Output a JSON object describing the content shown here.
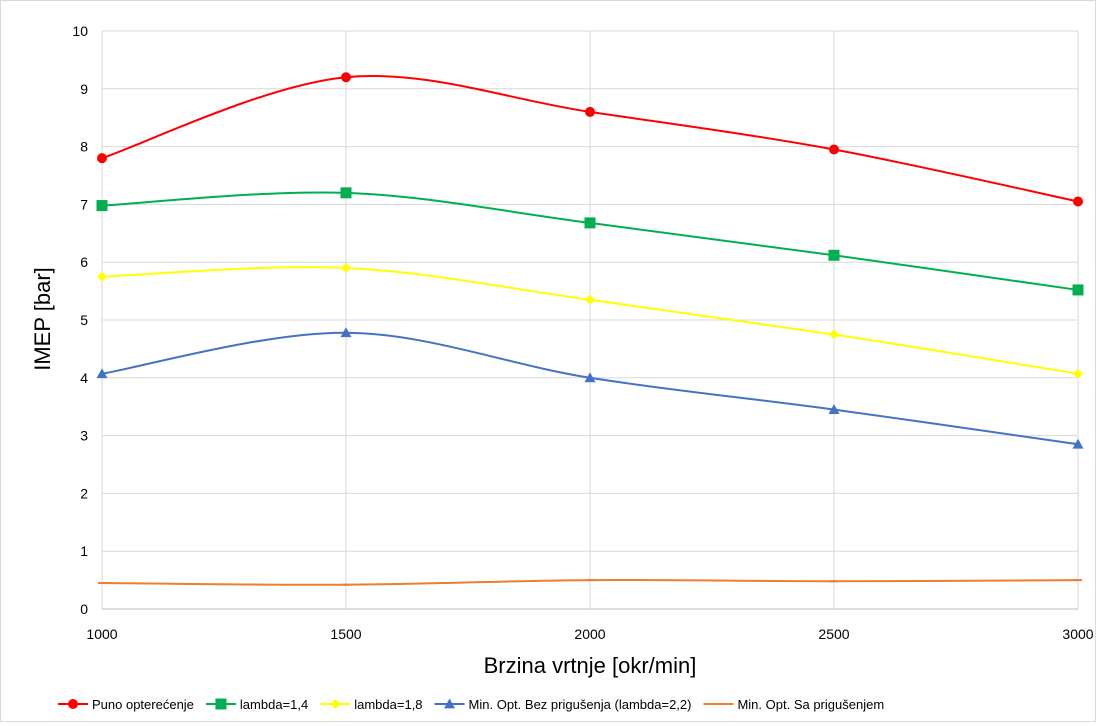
{
  "chart_data": {
    "type": "line",
    "smooth": true,
    "title": "",
    "xlabel": "Brzina vrtnje [okr/min]",
    "ylabel": "IMEP [bar]",
    "x": [
      1000,
      1500,
      2000,
      2500,
      3000
    ],
    "xticks": [
      "1000",
      "1500",
      "2000",
      "2500",
      "3000"
    ],
    "xlim": [
      1000,
      3000
    ],
    "ylim": [
      0,
      10
    ],
    "yticks": [
      "0",
      "1",
      "2",
      "3",
      "4",
      "5",
      "6",
      "7",
      "8",
      "9",
      "10"
    ],
    "grid": true,
    "legend_position": "bottom",
    "series": [
      {
        "name": "Puno opterećenje",
        "values": [
          7.8,
          9.2,
          8.6,
          7.95,
          7.05
        ],
        "color": "#ff0000",
        "marker": "circle"
      },
      {
        "name": "lambda=1,4",
        "values": [
          6.98,
          7.2,
          6.68,
          6.12,
          5.52
        ],
        "color": "#00b050",
        "marker": "square"
      },
      {
        "name": "lambda=1,8",
        "values": [
          5.75,
          5.9,
          5.35,
          4.75,
          4.07
        ],
        "color": "#ffff00",
        "marker": "diamond"
      },
      {
        "name": "Min. Opt. Bez prigušenja (lambda=2,2)",
        "values": [
          4.07,
          4.78,
          4.0,
          3.45,
          2.85
        ],
        "color": "#4472c4",
        "marker": "triangle"
      },
      {
        "name": "Min. Opt. Sa prigušenjem",
        "values": [
          0.45,
          0.42,
          0.5,
          0.48,
          0.5
        ],
        "color": "#ed7d31",
        "marker": "none"
      }
    ]
  }
}
